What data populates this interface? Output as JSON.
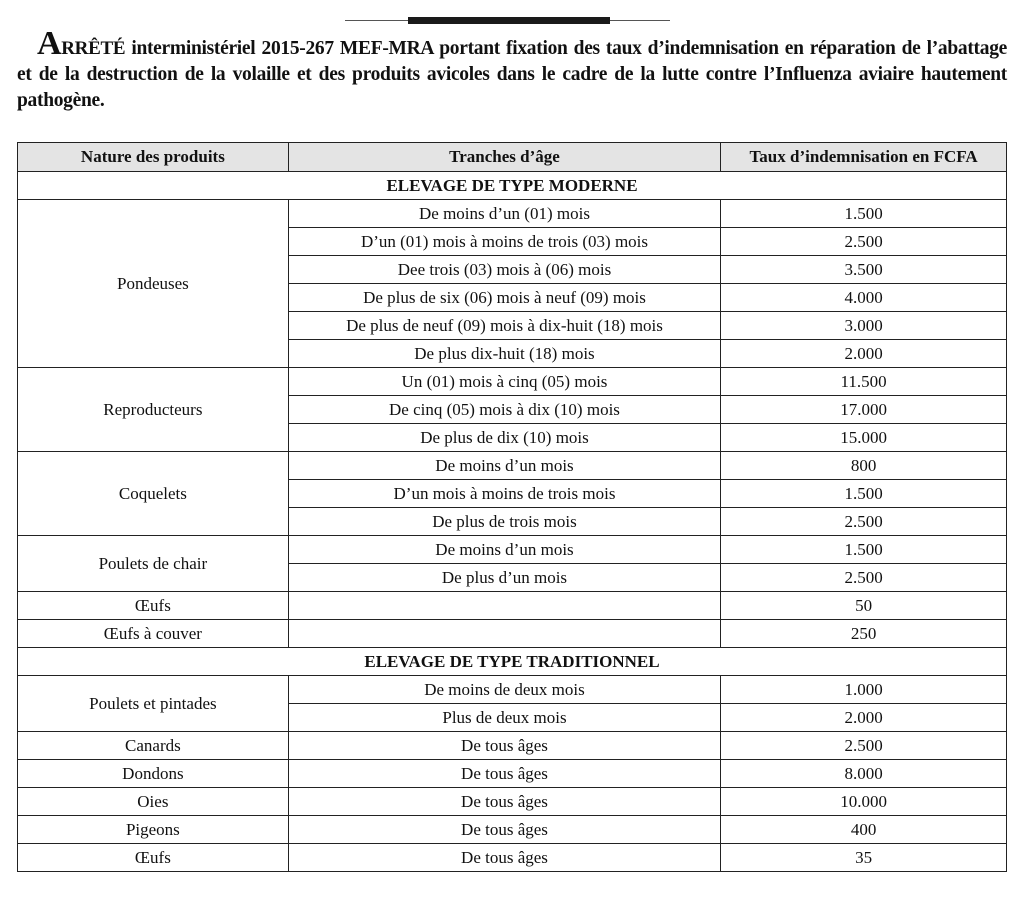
{
  "title": {
    "cap": "A",
    "caps_rest": "RRÊTÉ",
    "text": " interministériel 2015-267 MEF-MRA portant fixation des taux d’indemnisation en réparation de l’abattage et de la destruction de la volaille et des produits avicoles dans le cadre de la lutte contre l’Influenza aviaire hautement pathogène."
  },
  "table": {
    "headers": [
      "Nature des produits",
      "Tranches d’âge",
      "Taux d’indemnisation en FCFA"
    ],
    "sections": [
      {
        "title": "ELEVAGE DE TYPE MODERNE",
        "groups": [
          {
            "product": "Pondeuses",
            "rows": [
              [
                "De moins d’un (01) mois",
                "1.500"
              ],
              [
                "D’un (01) mois à moins de trois (03) mois",
                "2.500"
              ],
              [
                "Dee trois (03) mois à  (06) mois",
                "3.500"
              ],
              [
                "De plus de six (06) mois à neuf (09) mois",
                "4.000"
              ],
              [
                "De plus de neuf (09) mois à dix-huit (18) mois",
                "3.000"
              ],
              [
                "De plus dix-huit (18) mois",
                "2.000"
              ]
            ]
          },
          {
            "product": "Reproducteurs",
            "rows": [
              [
                "Un (01) mois à cinq (05) mois",
                "11.500"
              ],
              [
                "De cinq (05)  mois à dix (10) mois",
                "17.000"
              ],
              [
                "De plus de dix (10) mois",
                "15.000"
              ]
            ]
          },
          {
            "product": "Coquelets",
            "rows": [
              [
                "De  moins d’un mois",
                "800"
              ],
              [
                "D’un mois à moins de  trois mois",
                "1.500"
              ],
              [
                "De plus de trois mois",
                "2.500"
              ]
            ]
          },
          {
            "product": "Poulets de chair",
            "rows": [
              [
                "De  moins d’un mois",
                "1.500"
              ],
              [
                "De plus d’un mois",
                "2.500"
              ]
            ]
          },
          {
            "product": "Œufs",
            "rows": [
              [
                "",
                "50"
              ]
            ]
          },
          {
            "product": "Œufs à couver",
            "rows": [
              [
                "",
                "250"
              ]
            ]
          }
        ]
      },
      {
        "title": "ELEVAGE DE TYPE TRADITIONNEL",
        "groups": [
          {
            "product": "Poulets et pintades",
            "rows": [
              [
                "De moins de deux mois",
                "1.000"
              ],
              [
                "Plus de deux mois",
                "2.000"
              ]
            ]
          },
          {
            "product": "Canards",
            "rows": [
              [
                "De tous âges",
                "2.500"
              ]
            ]
          },
          {
            "product": "Dondons",
            "rows": [
              [
                "De tous âges",
                "8.000"
              ]
            ]
          },
          {
            "product": "Oies",
            "rows": [
              [
                "De tous âges",
                "10.000"
              ]
            ]
          },
          {
            "product": "Pigeons",
            "rows": [
              [
                "De tous âges",
                "400"
              ]
            ]
          },
          {
            "product": "Œufs",
            "rows": [
              [
                "De tous âges",
                "35"
              ]
            ]
          }
        ]
      }
    ]
  }
}
